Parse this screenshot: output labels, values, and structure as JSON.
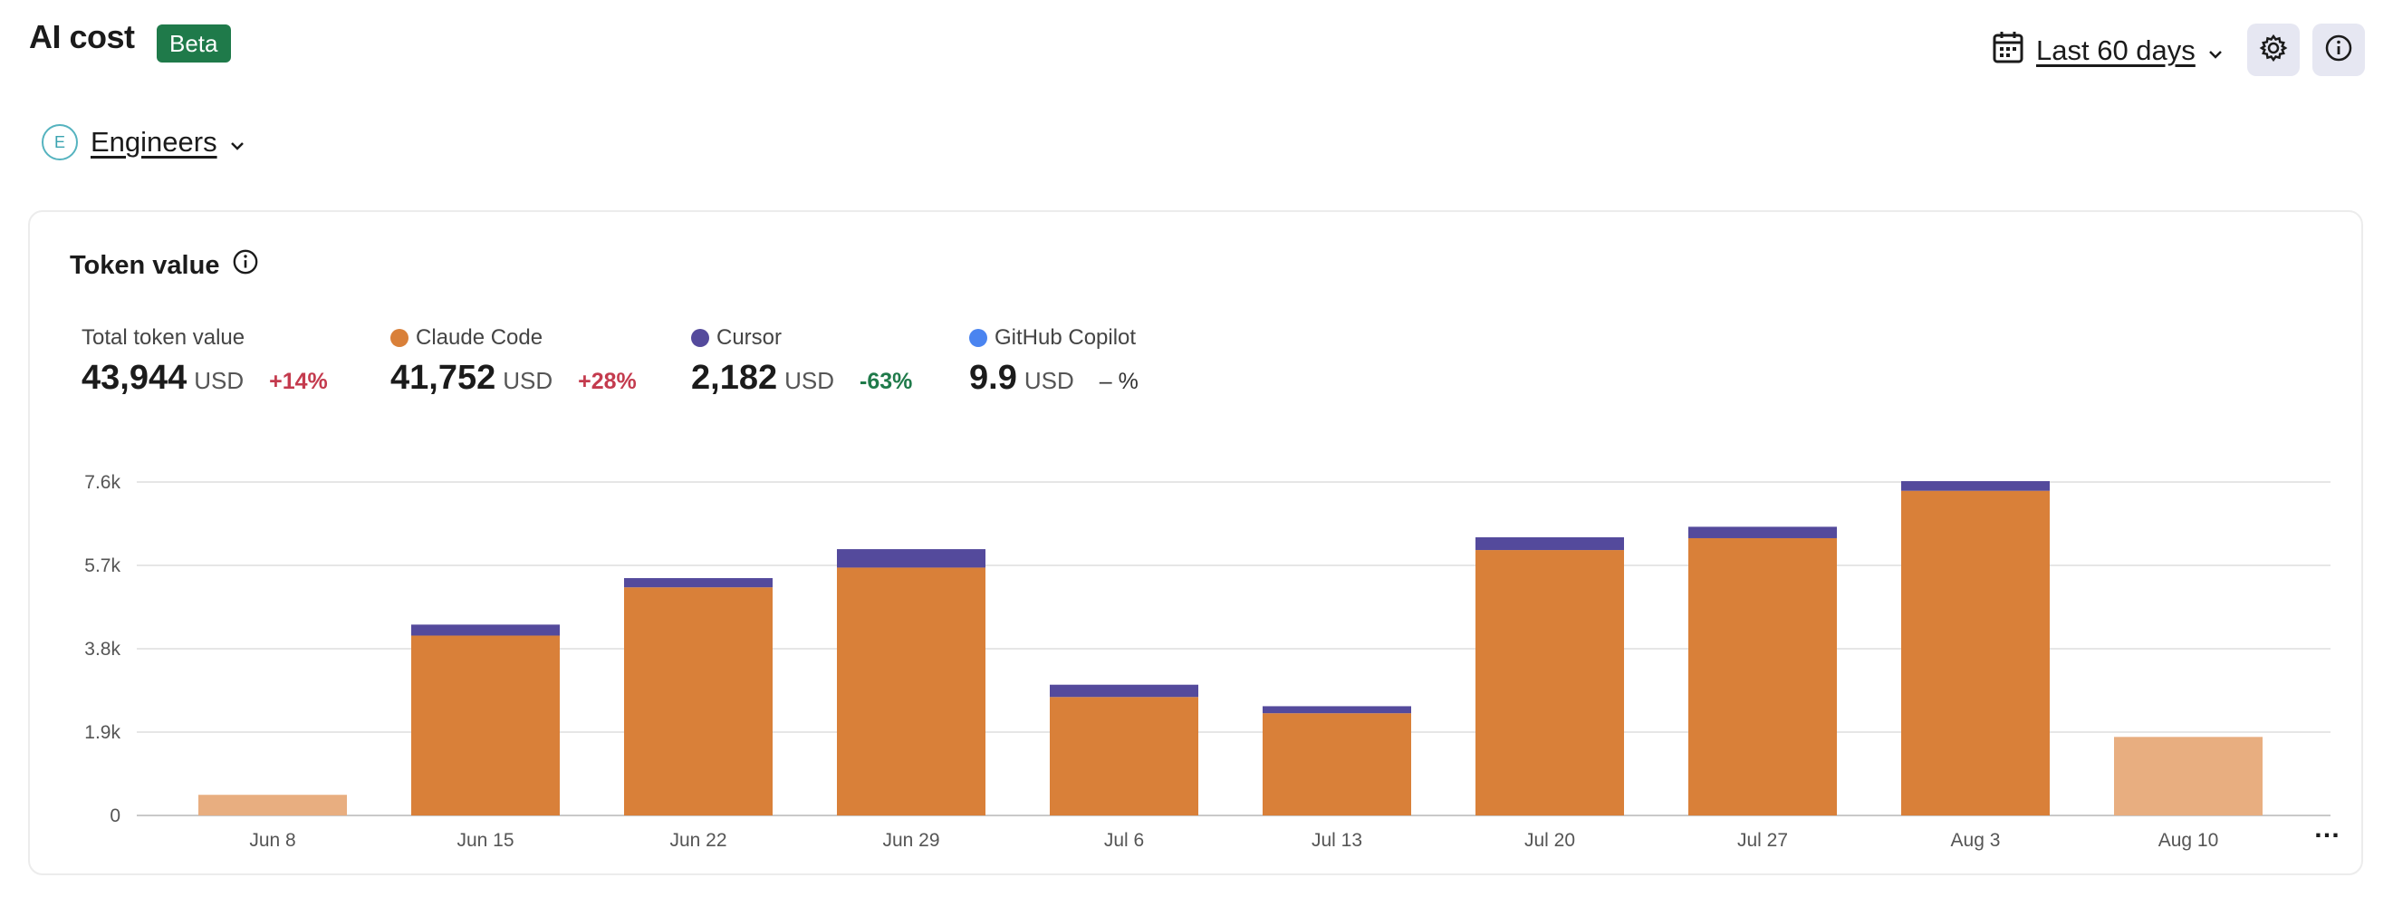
{
  "header": {
    "title": "AI cost",
    "badge": "Beta",
    "date_range": "Last 60 days",
    "icons": {
      "calendar": "calendar-icon",
      "settings": "gear-icon",
      "info": "info-icon"
    }
  },
  "team": {
    "initial": "E",
    "name": "Engineers"
  },
  "card": {
    "title": "Token value",
    "metrics": [
      {
        "label": "Total token value",
        "value": "43,944",
        "unit": "USD",
        "change": "+14%",
        "trend": "up",
        "color": ""
      },
      {
        "label": "Claude Code",
        "value": "41,752",
        "unit": "USD",
        "change": "+28%",
        "trend": "up",
        "color": "#d98039"
      },
      {
        "label": "Cursor",
        "value": "2,182",
        "unit": "USD",
        "change": "-63%",
        "trend": "down",
        "color": "#544a9c"
      },
      {
        "label": "GitHub Copilot",
        "value": "9.9",
        "unit": "USD",
        "change": "– %",
        "trend": "none",
        "color": "#4a84f0"
      }
    ],
    "more_label": "…"
  },
  "chart_data": {
    "type": "bar",
    "stacked": true,
    "categories": [
      "Jun 8",
      "Jun 15",
      "Jun 22",
      "Jun 29",
      "Jul 6",
      "Jul 13",
      "Jul 20",
      "Jul 27",
      "Aug 3",
      "Aug 10"
    ],
    "partial_categories": [
      "Jun 8",
      "Aug 10"
    ],
    "series": [
      {
        "name": "Claude Code",
        "color": "#d98039",
        "partial_color": "#e8ae80",
        "values": [
          470,
          4100,
          5200,
          5650,
          2700,
          2330,
          6050,
          6320,
          7400,
          1790
        ]
      },
      {
        "name": "Cursor",
        "color": "#544a9c",
        "partial_color": "#9f99cc",
        "values": [
          0,
          250,
          210,
          420,
          280,
          160,
          290,
          260,
          220,
          0
        ]
      },
      {
        "name": "GitHub Copilot",
        "color": "#4a84f0",
        "partial_color": "#9dbcf5",
        "values": [
          0,
          0,
          0,
          0,
          0,
          0,
          0,
          0,
          0,
          0
        ]
      }
    ],
    "yticks": [
      "0",
      "1.9k",
      "3.8k",
      "5.7k",
      "7.6k"
    ],
    "ytick_values": [
      0,
      1900,
      3800,
      5700,
      7600
    ],
    "ylim": [
      0,
      7600
    ],
    "grid": true,
    "legend": "top"
  }
}
